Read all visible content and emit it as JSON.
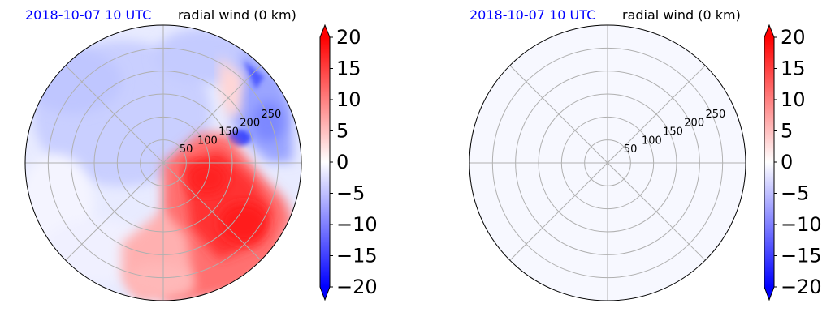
{
  "chart_data": [
    {
      "type": "heatmap",
      "projection": "polar",
      "title_date": "2018-10-07 10 UTC",
      "title_var": "radial wind (0 km)",
      "radial_ticks": [
        50,
        100,
        150,
        200,
        250
      ],
      "radial_max": 300,
      "angular_grid_deg": 45,
      "colorbar": {
        "ticks": [
          20,
          15,
          10,
          5,
          0,
          -5,
          -10,
          -15,
          -20
        ],
        "vmin": -20,
        "vmax": 20,
        "extend": "both",
        "low_color": "#0000ff",
        "mid_color": "#ffffff",
        "high_color": "#ff0000"
      },
      "field": "filled"
    },
    {
      "type": "heatmap",
      "projection": "polar",
      "title_date": "2018-10-07 10 UTC",
      "title_var": "radial wind (0 km)",
      "radial_ticks": [
        50,
        100,
        150,
        200,
        250
      ],
      "radial_max": 300,
      "angular_grid_deg": 45,
      "colorbar": {
        "ticks": [
          20,
          15,
          10,
          5,
          0,
          -5,
          -10,
          -15,
          -20
        ],
        "vmin": -20,
        "vmax": 20,
        "extend": "both",
        "low_color": "#0000ff",
        "mid_color": "#ffffff",
        "high_color": "#ff0000"
      },
      "field": "empty"
    }
  ]
}
